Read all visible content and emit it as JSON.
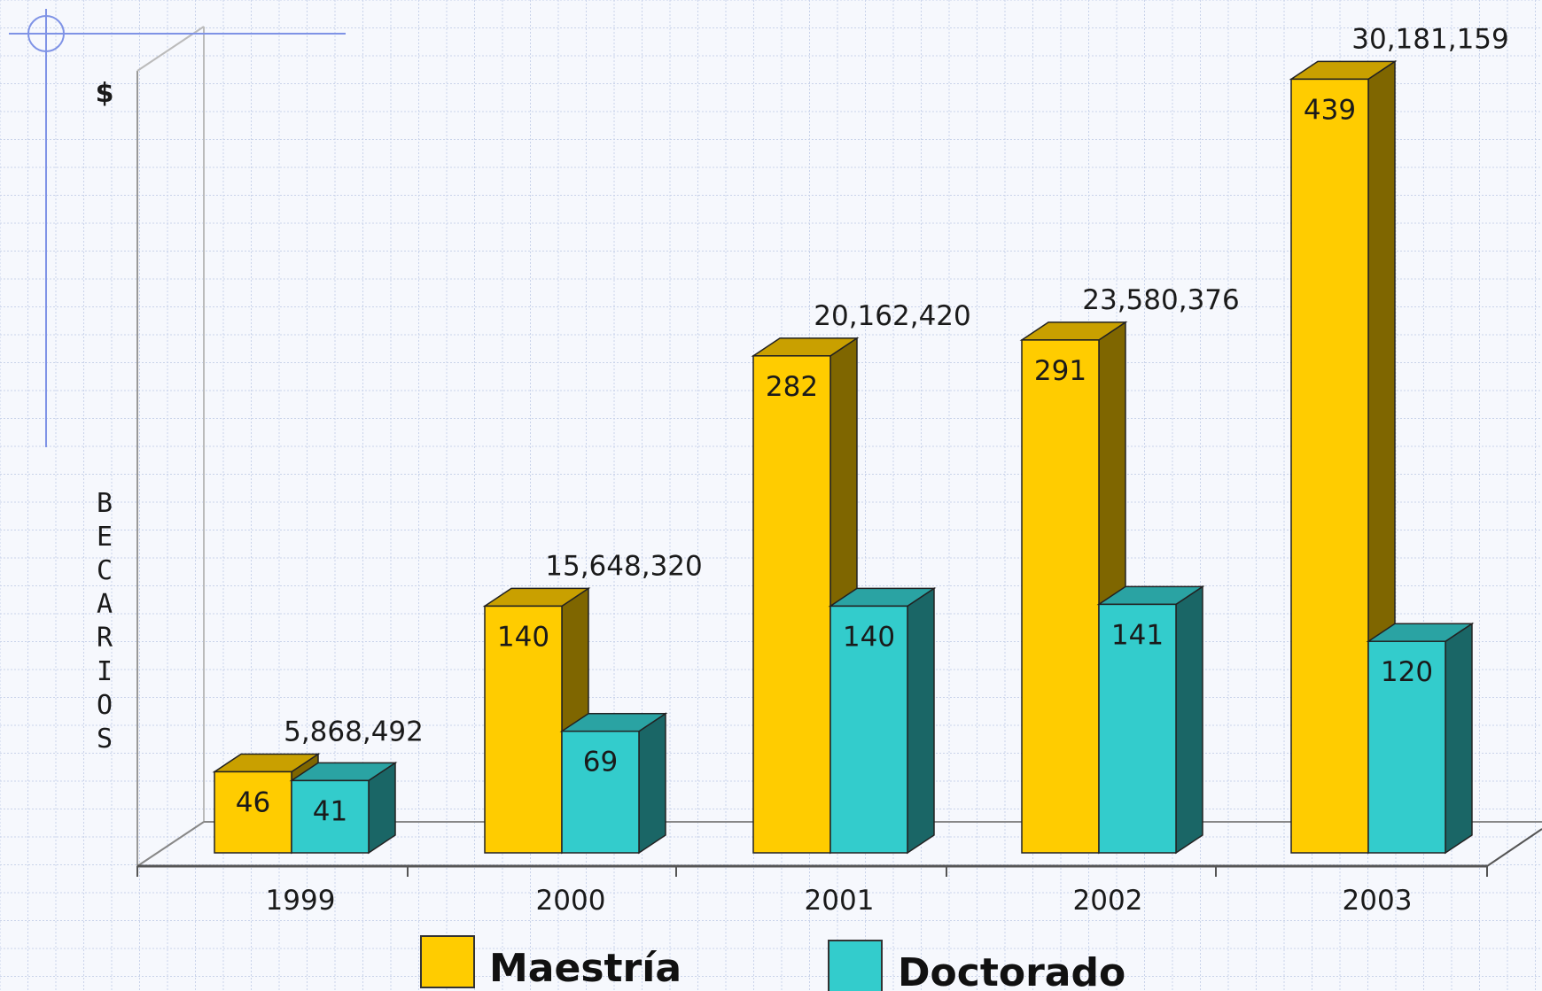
{
  "chart_data": {
    "type": "bar",
    "categories": [
      "1999",
      "2000",
      "2001",
      "2002",
      "2003"
    ],
    "series": [
      {
        "name": "Maestría",
        "values": [
          46,
          140,
          282,
          291,
          439
        ]
      },
      {
        "name": "Doctorado",
        "values": [
          41,
          69,
          140,
          141,
          120
        ]
      }
    ],
    "totals": [
      "5,868,492",
      "15,648,320",
      "20,162,420",
      "23,580,376",
      "30,181,159"
    ],
    "ylabel_dollar": "$",
    "ylabel_letters": [
      "B",
      "E",
      "C",
      "A",
      "R",
      "I",
      "O",
      "S"
    ],
    "ylim": [
      0,
      450
    ],
    "grid": true,
    "legend_position": "bottom",
    "colors": {
      "maestria": "#ffcc00",
      "maestria_side": "#7f6600",
      "maestria_top": "#c9a000",
      "doctorado": "#33cccc",
      "doctorado_side": "#1a6666",
      "doctorado_top": "#2aa3a3",
      "grid": "#c9d3ea",
      "axis": "#888888"
    }
  }
}
